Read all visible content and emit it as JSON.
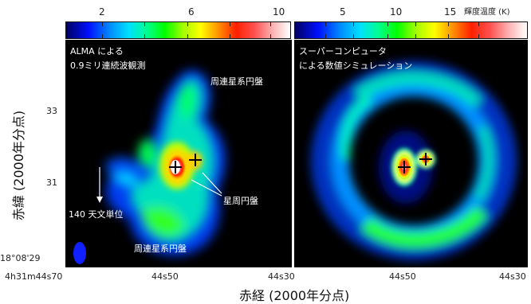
{
  "colorbar_left": {
    "ticks": [
      "2",
      "6",
      "10"
    ],
    "range": [
      0,
      11
    ],
    "tick_values": [
      2,
      6,
      10
    ]
  },
  "colorbar_right": {
    "ticks": [
      "5",
      "10",
      "15"
    ],
    "unit_label": "輝度温度 (K)",
    "range": [
      0,
      20
    ],
    "tick_values": [
      5,
      10,
      15
    ]
  },
  "left_panel": {
    "title_line1": "ALMA による",
    "title_line2": "0.9ミリ連続波観測",
    "label_circumbinary_top": "周連星系円盤",
    "label_circumbinary_bottom": "周連星系円盤",
    "label_circumstellar": "星周円盤",
    "label_scale": "140 天文単位"
  },
  "right_panel": {
    "title_line1": "スーパーコンピュータ",
    "title_line2": "による数値シミュレーション"
  },
  "y_axis": {
    "title": "赤緯 (2000年分点)",
    "ticks": [
      "33",
      "31",
      "18°08'29"
    ]
  },
  "x_axis": {
    "title": "赤経 (2000年分点)",
    "ticks": [
      "4h31m44s70",
      "44s50",
      "44s30",
      "44s50",
      "44s30"
    ]
  },
  "colors": {
    "background": "#000000",
    "colormap": [
      "#000050",
      "#0000ff",
      "#00a0ff",
      "#00ffb0",
      "#00ff00",
      "#c0ff00",
      "#ffff00",
      "#ff8000",
      "#ff0000",
      "#ff8080",
      "#ffffff"
    ]
  }
}
